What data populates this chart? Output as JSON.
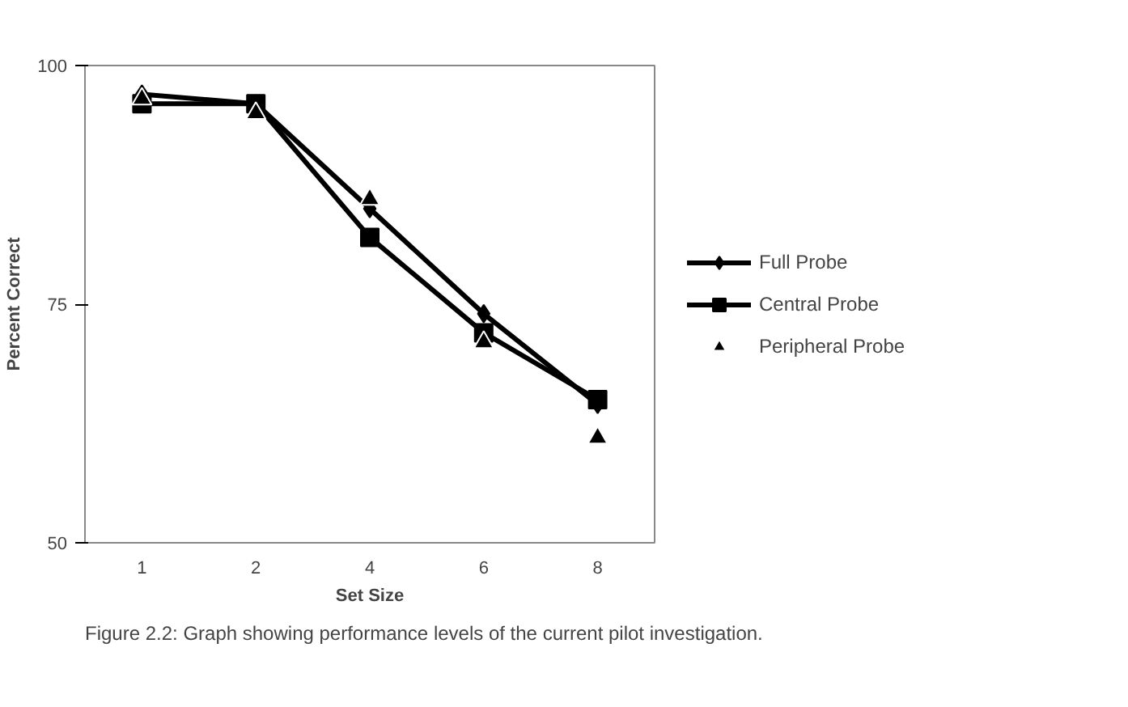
{
  "chart_data": {
    "type": "line",
    "xlabel": "Set Size",
    "ylabel": "Percent Correct",
    "categories": [
      "1",
      "2",
      "4",
      "6",
      "8"
    ],
    "ylim": [
      50,
      100
    ],
    "yticks": [
      50,
      75,
      100
    ],
    "grid": false,
    "legend": "right",
    "series": [
      {
        "name": "Full Probe",
        "color": "#000000",
        "marker": "diamond",
        "values": [
          97,
          96,
          85,
          74,
          64.5
        ]
      },
      {
        "name": "Central Probe",
        "color": "#000000",
        "marker": "square",
        "values": [
          96,
          96,
          82,
          72,
          65
        ]
      },
      {
        "name": "Peripheral Probe",
        "type": "scatter",
        "color": "#000000",
        "marker": "triangle",
        "values": [
          96.5,
          95,
          86,
          71,
          61
        ]
      }
    ],
    "annotations": [
      "Figure 2.2: Graph showing performance levels of the current pilot investigation."
    ]
  }
}
